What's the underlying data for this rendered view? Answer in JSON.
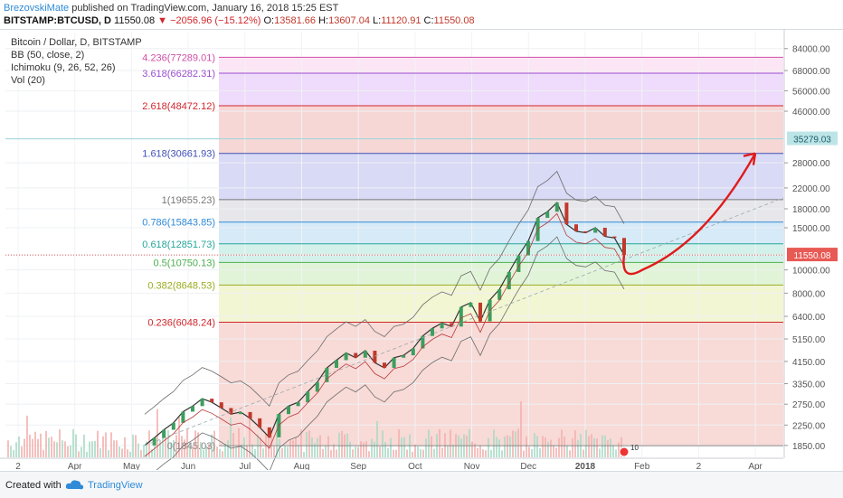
{
  "header": {
    "author": "BrezovskiMate",
    "published": "published on TradingView.com, January 16, 2018 15:25 EST",
    "symbol": "BITSTAMP:BTCUSD, D",
    "price": "11550.08",
    "change": "−2056.96 (−15.12%)",
    "open_label": "O:",
    "open": "13581.66",
    "high_label": "H:",
    "high": "13607.04",
    "low_label": "L:",
    "low": "11120.91",
    "close_label": "C:",
    "close": "11550.08"
  },
  "legend": {
    "title": "Bitcoin / Dollar, D, BITSTAMP",
    "items": [
      "BB (50, close, 2)",
      "Ichimoku (9, 26, 52, 26)",
      "Vol (20)"
    ]
  },
  "chart_data": {
    "type": "line",
    "title": "Bitcoin / Dollar, D, BITSTAMP",
    "yscale": "log",
    "ylim": [
      1650,
      98000
    ],
    "x_ticks": [
      "2",
      "Apr",
      "May",
      "Jun",
      "Jul",
      "Aug",
      "Sep",
      "Oct",
      "Nov",
      "Dec",
      "2018",
      "Feb",
      "2",
      "Apr"
    ],
    "y_ticks": [
      "84000.00",
      "68000.00",
      "56000.00",
      "46000.00",
      "35279.03",
      "28000.00",
      "22000.00",
      "18000.00",
      "15000.00",
      "11550.08",
      "10000.00",
      "8000.00",
      "6400.00",
      "5150.00",
      "4150.00",
      "3350.00",
      "2750.00",
      "2250.00",
      "1850.00"
    ],
    "current_price": 11550.08,
    "target_price_label": 35279.03,
    "fib_levels": [
      {
        "label": "4.236(77289.01)",
        "value": 77289.01,
        "color": "#d04fa8"
      },
      {
        "label": "3.618(66282.31)",
        "value": 66282.31,
        "color": "#9b4fd0"
      },
      {
        "label": "2.618(48472.12)",
        "value": 48472.12,
        "color": "#d0262b"
      },
      {
        "label": "1.618(30661.93)",
        "value": 30661.93,
        "color": "#3f51b5"
      },
      {
        "label": "1(19655.23)",
        "value": 19655.23,
        "color": "#777777"
      },
      {
        "label": "0.786(15843.85)",
        "value": 15843.85,
        "color": "#2f8ad8"
      },
      {
        "label": "0.618(12851.73)",
        "value": 12851.73,
        "color": "#26a69a"
      },
      {
        "label": "0.5(10750.13)",
        "value": 10750.13,
        "color": "#4caf50"
      },
      {
        "label": "0.382(8648.53)",
        "value": 8648.53,
        "color": "#9aad1f"
      },
      {
        "label": "0.236(6048.24)",
        "value": 6048.24,
        "color": "#d0262b"
      },
      {
        "label": "0(1845.03)",
        "value": 1845.03,
        "color": "#888888"
      }
    ],
    "series": [
      {
        "x": [
          0,
          5,
          10,
          15,
          20,
          25,
          30,
          35,
          40,
          45,
          50,
          55,
          60,
          65,
          70,
          75,
          80,
          85,
          90,
          95,
          100,
          105,
          110,
          115,
          120,
          125,
          130,
          135,
          140,
          145,
          150,
          155,
          160,
          165,
          170,
          175,
          180,
          185,
          190,
          195,
          200,
          205,
          210,
          215,
          220,
          225,
          230,
          235,
          240,
          245,
          250
        ],
        "y": [
          1850,
          1990,
          2150,
          2300,
          2560,
          2700,
          2900,
          2800,
          2650,
          2500,
          2550,
          2400,
          2200,
          2000,
          2500,
          2700,
          2800,
          3100,
          3400,
          3900,
          4200,
          4500,
          4300,
          4600,
          4100,
          3900,
          4300,
          4400,
          4700,
          5300,
          5700,
          6000,
          5800,
          7000,
          7300,
          6100,
          7500,
          8300,
          9800,
          11500,
          13200,
          16500,
          17500,
          19100,
          15500,
          14500,
          14300,
          15000,
          13800,
          13600,
          11550
        ]
      }
    ],
    "annotation": "red arrow projecting from ~10000 toward ~35000"
  },
  "footer": {
    "created": "Created with",
    "brand": "TradingView"
  },
  "colors": {
    "accent": "#2f8ad8",
    "down": "#d0262b",
    "arrow": "#e01b1b"
  }
}
